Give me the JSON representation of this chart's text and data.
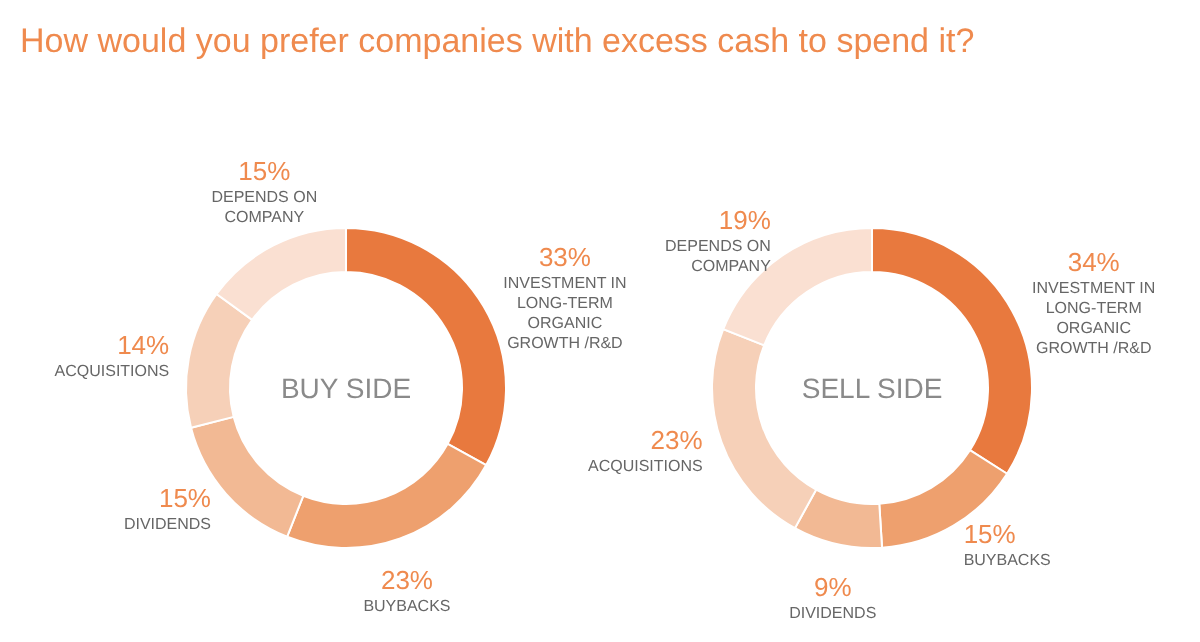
{
  "chart_data": [
    {
      "type": "donut",
      "title": "How would you prefer companies with excess cash to spend it?",
      "subtitle": "BUY SIDE",
      "categories": [
        "INVESTMENT IN LONG-TERM ORGANIC GROWTH /R&D",
        "BUYBACKS",
        "DIVIDENDS",
        "ACQUISITIONS",
        "DEPENDS ON COMPANY"
      ],
      "values": [
        33,
        23,
        15,
        14,
        15
      ],
      "value_labels": [
        "33%",
        "23%",
        "15%",
        "14%",
        "15%"
      ],
      "colors": [
        "#e8793e",
        "#eea06e",
        "#f2b994",
        "#f6d0b8",
        "#fae0d2"
      ]
    },
    {
      "type": "donut",
      "subtitle": "SELL SIDE",
      "categories": [
        "INVESTMENT IN LONG-TERM ORGANIC GROWTH /R&D",
        "BUYBACKS",
        "DIVIDENDS",
        "ACQUISITIONS",
        "DEPENDS ON COMPANY"
      ],
      "values": [
        34,
        15,
        9,
        23,
        19
      ],
      "value_labels": [
        "34%",
        "15%",
        "9%",
        "23%",
        "19%"
      ],
      "colors": [
        "#e8793e",
        "#eea06e",
        "#f2b994",
        "#f6d0b8",
        "#fae0d2"
      ]
    }
  ]
}
